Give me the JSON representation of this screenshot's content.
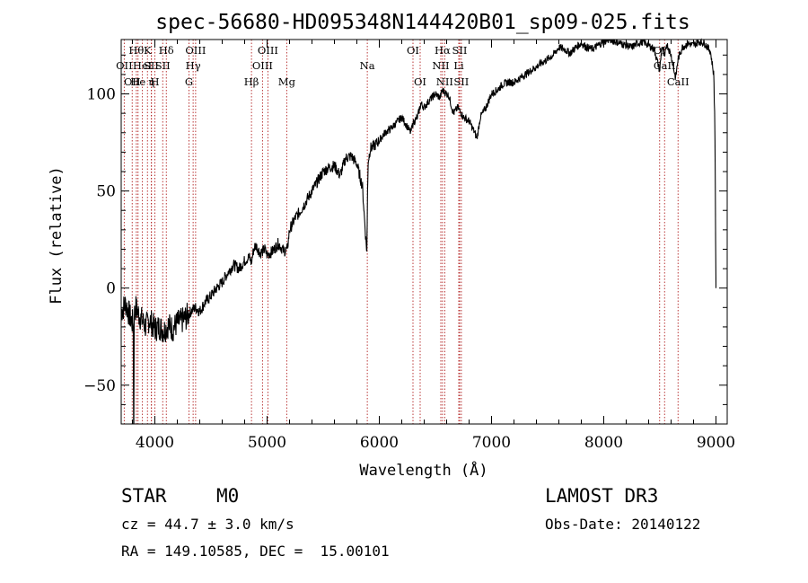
{
  "chart_data": {
    "type": "line",
    "title": "spec-56680-HD095348N144420B01_sp09-025.fits",
    "xlabel": "Wavelength (Å)",
    "ylabel": "Flux (relative)",
    "xlim": [
      3700,
      9100
    ],
    "ylim": [
      -70,
      128
    ],
    "xticks": [
      {
        "value": 4000,
        "label": "4000"
      },
      {
        "value": 5000,
        "label": "5000"
      },
      {
        "value": 6000,
        "label": "6000"
      },
      {
        "value": 7000,
        "label": "7000"
      },
      {
        "value": 8000,
        "label": "8000"
      },
      {
        "value": 9000,
        "label": "9000"
      }
    ],
    "yticks": [
      {
        "value": -50,
        "label": "−50"
      },
      {
        "value": 0,
        "label": "0"
      },
      {
        "value": 50,
        "label": "50"
      },
      {
        "value": 100,
        "label": "100"
      }
    ],
    "series": [
      {
        "name": "flux",
        "x": [
          3700,
          3740,
          3780,
          3800,
          3830,
          3860,
          3890,
          3920,
          3950,
          3980,
          4000,
          4040,
          4080,
          4120,
          4160,
          4200,
          4240,
          4280,
          4320,
          4360,
          4400,
          4450,
          4500,
          4550,
          4600,
          4650,
          4700,
          4750,
          4800,
          4840,
          4860,
          4880,
          4900,
          4940,
          4980,
          5000,
          5050,
          5100,
          5150,
          5180,
          5200,
          5250,
          5300,
          5350,
          5400,
          5450,
          5500,
          5550,
          5600,
          5650,
          5700,
          5750,
          5800,
          5850,
          5880,
          5890,
          5895,
          5900,
          5920,
          5950,
          6000,
          6050,
          6100,
          6150,
          6200,
          6250,
          6280,
          6300,
          6340,
          6370,
          6400,
          6450,
          6500,
          6540,
          6563,
          6580,
          6620,
          6660,
          6700,
          6750,
          6800,
          6850,
          6870,
          6900,
          6950,
          7000,
          7050,
          7100,
          7150,
          7200,
          7250,
          7300,
          7350,
          7400,
          7450,
          7500,
          7550,
          7600,
          7650,
          7700,
          7750,
          7800,
          7850,
          7900,
          7950,
          8000,
          8050,
          8100,
          8150,
          8200,
          8250,
          8300,
          8350,
          8400,
          8450,
          8498,
          8520,
          8542,
          8560,
          8600,
          8640,
          8662,
          8700,
          8750,
          8800,
          8850,
          8900,
          8950,
          8980,
          8990,
          9000
        ],
        "y": [
          -12,
          -8,
          -15,
          -18,
          -10,
          -14,
          -17,
          -20,
          -16,
          -19,
          -21,
          -20,
          -22,
          -19,
          -21,
          -18,
          -17,
          -15,
          -12,
          -10,
          -12,
          -7,
          -4,
          0,
          3,
          8,
          12,
          10,
          14,
          16,
          13,
          20,
          22,
          18,
          20,
          17,
          19,
          23,
          19,
          20,
          30,
          36,
          40,
          45,
          50,
          55,
          60,
          62,
          63,
          58,
          67,
          68,
          64,
          52,
          25,
          18,
          50,
          65,
          72,
          73,
          76,
          80,
          82,
          85,
          88,
          83,
          80,
          85,
          88,
          95,
          93,
          97,
          100,
          98,
          102,
          101,
          99,
          90,
          93,
          88,
          86,
          80,
          77,
          88,
          93,
          100,
          102,
          105,
          106,
          106,
          108,
          110,
          112,
          114,
          116,
          118,
          120,
          124,
          123,
          121,
          124,
          126,
          124,
          123,
          125,
          127,
          128,
          127,
          126,
          125,
          124,
          126,
          127,
          125,
          123,
          112,
          125,
          118,
          126,
          120,
          108,
          118,
          124,
          126,
          125,
          127,
          126,
          122,
          110,
          85,
          0
        ]
      }
    ],
    "spectral_lines": [
      {
        "wavelength": 3727,
        "label": "OII",
        "row": 1
      },
      {
        "wavelength": 3798,
        "label": "OII",
        "row": 2
      },
      {
        "wavelength": 3835,
        "label": "Hθ",
        "row": 0
      },
      {
        "wavelength": 3850,
        "label": "He",
        "row": 2
      },
      {
        "wavelength": 3889,
        "label": "HeI",
        "row": 1
      },
      {
        "wavelength": 3934,
        "label": "K",
        "row": 0
      },
      {
        "wavelength": 3970,
        "label": "η",
        "row": 2
      },
      {
        "wavelength": 3968,
        "label": "SII",
        "row": 1
      },
      {
        "wavelength": 4000,
        "label": "H",
        "row": 2
      },
      {
        "wavelength": 4070,
        "label": "SII",
        "row": 1
      },
      {
        "wavelength": 4102,
        "label": "Hδ",
        "row": 0
      },
      {
        "wavelength": 4304,
        "label": "G",
        "row": 2
      },
      {
        "wavelength": 4341,
        "label": "Hγ",
        "row": 1
      },
      {
        "wavelength": 4363,
        "label": "OIII",
        "row": 0
      },
      {
        "wavelength": 4861,
        "label": "Hβ",
        "row": 2
      },
      {
        "wavelength": 4959,
        "label": "OIII",
        "row": 1
      },
      {
        "wavelength": 5007,
        "label": "OIII",
        "row": 0
      },
      {
        "wavelength": 5175,
        "label": "Mg",
        "row": 2
      },
      {
        "wavelength": 5893,
        "label": "Na",
        "row": 1
      },
      {
        "wavelength": 6300,
        "label": "OI",
        "row": 0
      },
      {
        "wavelength": 6364,
        "label": "OI",
        "row": 2
      },
      {
        "wavelength": 6548,
        "label": "NII",
        "row": 1
      },
      {
        "wavelength": 6563,
        "label": "Hα",
        "row": 0
      },
      {
        "wavelength": 6583,
        "label": "NII",
        "row": 2
      },
      {
        "wavelength": 6708,
        "label": "Li",
        "row": 1
      },
      {
        "wavelength": 6716,
        "label": "SII",
        "row": 0
      },
      {
        "wavelength": 6731,
        "label": "SII",
        "row": 2
      },
      {
        "wavelength": 8498,
        "label": "OI",
        "row": 0
      },
      {
        "wavelength": 8542,
        "label": "CaII",
        "row": 1
      },
      {
        "wavelength": 8662,
        "label": "CaII",
        "row": 2
      }
    ]
  },
  "footer": {
    "object_class": "STAR",
    "subclass": "M0",
    "survey": "LAMOST DR3",
    "cz": "cz = 44.7 ± 3.0 km/s",
    "obs_date": "Obs-Date: 20140122",
    "coords": "RA = 149.10585, DEC =  15.00101"
  }
}
